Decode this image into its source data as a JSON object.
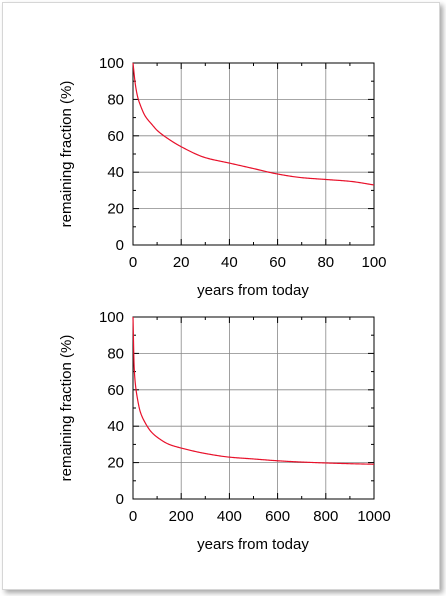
{
  "chart_data": [
    {
      "type": "line",
      "xlabel": "years from today",
      "ylabel": "remaining fraction (%)",
      "xlim": [
        0,
        100
      ],
      "ylim": [
        0,
        100
      ],
      "grid": true,
      "x_ticks": [
        "0",
        "20",
        "40",
        "60",
        "80",
        "100"
      ],
      "y_ticks": [
        "0",
        "20",
        "40",
        "60",
        "80",
        "100"
      ],
      "line_color": "#e8102a",
      "series": [
        {
          "x": [
            0,
            1,
            2,
            3,
            5,
            8,
            10,
            15,
            20,
            30,
            40,
            50,
            60,
            70,
            80,
            90,
            100
          ],
          "values": [
            100,
            88,
            81,
            77,
            71,
            66,
            63,
            58,
            54,
            48,
            45,
            42,
            39,
            37,
            36,
            35,
            33
          ]
        }
      ]
    },
    {
      "type": "line",
      "xlabel": "years from today",
      "ylabel": "remaining fraction (%)",
      "xlim": [
        0,
        1000
      ],
      "ylim": [
        0,
        100
      ],
      "grid": true,
      "x_ticks": [
        "0",
        "200",
        "400",
        "600",
        "800",
        "1000"
      ],
      "y_ticks": [
        "0",
        "20",
        "40",
        "60",
        "80",
        "100"
      ],
      "line_color": "#e8102a",
      "series": [
        {
          "x": [
            0,
            5,
            10,
            20,
            30,
            50,
            75,
            100,
            150,
            200,
            300,
            400,
            500,
            600,
            700,
            800,
            900,
            1000
          ],
          "values": [
            100,
            72,
            63,
            54,
            48,
            42,
            37,
            34,
            30,
            28,
            25,
            23,
            22,
            21,
            20.3,
            19.8,
            19.4,
            19.1
          ]
        }
      ]
    }
  ]
}
